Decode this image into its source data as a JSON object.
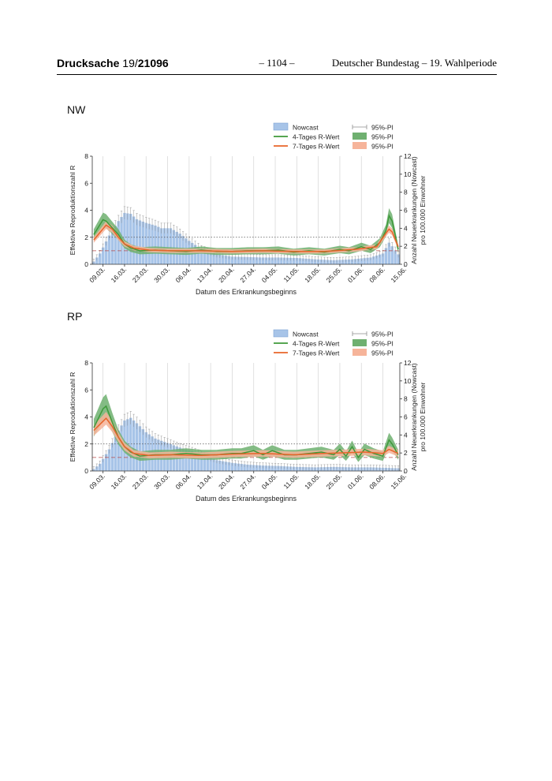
{
  "header": {
    "doc_label": "Drucksache",
    "doc_number_plain": "19/",
    "doc_number_bold": "21096",
    "page_number": "– 1104 –",
    "institution": "Deutscher Bundestag – 19. Wahlperiode"
  },
  "colors": {
    "bar": "#a7c4e8",
    "bar_edge": "#7fa4d2",
    "green": "#3e9a3a",
    "green_band": "#6fb070",
    "orange": "#e8642a",
    "orange_band": "#f6b49a",
    "pi": "#8e8e8e"
  },
  "chart_data": [
    {
      "type": "bar+line",
      "title": "NW",
      "xlabel": "Datum des Erkrankungsbeginns",
      "ylabel_left": "Effektive Reproduktionszahl R",
      "ylabel_right_1": "Anzahl Neuerkrankungen (Nowcast)",
      "ylabel_right_2": "pro 100.000 Einwohner",
      "ylim_left": [
        0,
        8
      ],
      "ylim_right": [
        0,
        12
      ],
      "yticks_left": [
        "0",
        "2",
        "4",
        "6",
        "8"
      ],
      "yticks_right": [
        "0",
        "2",
        "4",
        "6",
        "8",
        "10",
        "12"
      ],
      "x_ticks": [
        "09.03.",
        "16.03.",
        "23.03.",
        "30.03.",
        "06.04.",
        "13.04.",
        "20.04.",
        "27.04.",
        "04.05.",
        "11.05.",
        "18.05.",
        "25.05.",
        "01.06.",
        "08.06.",
        "15.06."
      ],
      "legend": [
        {
          "label": "Nowcast",
          "kind": "bar"
        },
        {
          "label": "4-Tages R-Wert",
          "kind": "green-line"
        },
        {
          "label": "7-Tages R-Wert",
          "kind": "orange-line"
        },
        {
          "label": "95%-PI",
          "kind": "errorbar"
        },
        {
          "label": "95%-PI",
          "kind": "green-band"
        },
        {
          "label": "95%-PI",
          "kind": "orange-band"
        }
      ],
      "reference_lines": {
        "r_equals_1": 1,
        "dotted_right_value": 3
      },
      "nowcast_keys": [
        [
          0,
          0.3
        ],
        [
          2,
          1.2
        ],
        [
          5,
          3.2
        ],
        [
          8,
          4.8
        ],
        [
          10,
          5.7
        ],
        [
          12,
          5.6
        ],
        [
          14,
          5.0
        ],
        [
          17,
          4.6
        ],
        [
          20,
          4.3
        ],
        [
          22,
          4.0
        ],
        [
          25,
          4.0
        ],
        [
          28,
          3.4
        ],
        [
          31,
          2.6
        ],
        [
          35,
          1.7
        ],
        [
          40,
          1.1
        ],
        [
          45,
          0.85
        ],
        [
          50,
          0.8
        ],
        [
          55,
          0.75
        ],
        [
          60,
          0.75
        ],
        [
          66,
          0.7
        ],
        [
          72,
          0.55
        ],
        [
          78,
          0.45
        ],
        [
          84,
          0.55
        ],
        [
          90,
          0.75
        ],
        [
          94,
          1.2
        ],
        [
          96,
          2.4
        ],
        [
          97,
          2.0
        ],
        [
          99,
          1.1
        ]
      ],
      "r4_keys": [
        [
          0,
          2.2
        ],
        [
          3,
          3.3
        ],
        [
          4,
          3.2
        ],
        [
          6,
          2.7
        ],
        [
          8,
          2.2
        ],
        [
          10,
          1.5
        ],
        [
          12,
          1.2
        ],
        [
          15,
          1.0
        ],
        [
          20,
          1.05
        ],
        [
          25,
          1.0
        ],
        [
          30,
          0.95
        ],
        [
          35,
          1.05
        ],
        [
          40,
          0.95
        ],
        [
          45,
          0.95
        ],
        [
          50,
          1.0
        ],
        [
          55,
          1.0
        ],
        [
          60,
          1.05
        ],
        [
          65,
          0.9
        ],
        [
          70,
          1.0
        ],
        [
          75,
          0.9
        ],
        [
          80,
          1.1
        ],
        [
          83,
          1.0
        ],
        [
          87,
          1.3
        ],
        [
          90,
          1.1
        ],
        [
          93,
          1.6
        ],
        [
          95,
          2.5
        ],
        [
          96,
          3.6
        ],
        [
          97,
          3.2
        ],
        [
          99,
          1.1
        ]
      ],
      "r7_keys": [
        [
          0,
          1.8
        ],
        [
          4,
          2.9
        ],
        [
          6,
          2.6
        ],
        [
          8,
          2.0
        ],
        [
          10,
          1.5
        ],
        [
          13,
          1.2
        ],
        [
          18,
          1.05
        ],
        [
          25,
          1.0
        ],
        [
          35,
          1.0
        ],
        [
          45,
          0.95
        ],
        [
          55,
          1.0
        ],
        [
          65,
          0.95
        ],
        [
          75,
          0.95
        ],
        [
          85,
          1.1
        ],
        [
          92,
          1.3
        ],
        [
          95,
          2.3
        ],
        [
          96,
          2.6
        ],
        [
          97,
          2.4
        ],
        [
          99,
          1.3
        ]
      ],
      "r4_band_halfwidth": 0.25,
      "r7_band_halfwidth": 0.15
    },
    {
      "type": "bar+line",
      "title": "RP",
      "xlabel": "Datum des Erkrankungsbeginns",
      "ylabel_left": "Effektive Reproduktionszahl R",
      "ylabel_right_1": "Anzahl Neuerkrankungen (Nowcast)",
      "ylabel_right_2": "pro 100.000 Einwohner",
      "ylim_left": [
        0,
        8
      ],
      "ylim_right": [
        0,
        12
      ],
      "yticks_left": [
        "0",
        "2",
        "4",
        "6",
        "8"
      ],
      "yticks_right": [
        "0",
        "2",
        "4",
        "6",
        "8",
        "10",
        "12"
      ],
      "x_ticks": [
        "09.03.",
        "16.03.",
        "23.03.",
        "30.03.",
        "06.04.",
        "13.04.",
        "20.04.",
        "27.04.",
        "04.05.",
        "11.05.",
        "18.05.",
        "25.05.",
        "01.06.",
        "08.06.",
        "15.06."
      ],
      "legend": [
        {
          "label": "Nowcast",
          "kind": "bar"
        },
        {
          "label": "4-Tages R-Wert",
          "kind": "green-line"
        },
        {
          "label": "7-Tages R-Wert",
          "kind": "orange-line"
        },
        {
          "label": "95%-PI",
          "kind": "errorbar"
        },
        {
          "label": "95%-PI",
          "kind": "green-band"
        },
        {
          "label": "95%-PI",
          "kind": "orange-band"
        }
      ],
      "reference_lines": {
        "r_equals_1": 1,
        "dotted_right_value": 3
      },
      "nowcast_keys": [
        [
          0,
          0.2
        ],
        [
          2,
          0.8
        ],
        [
          5,
          2.4
        ],
        [
          8,
          4.5
        ],
        [
          10,
          5.6
        ],
        [
          12,
          5.9
        ],
        [
          14,
          5.3
        ],
        [
          17,
          4.3
        ],
        [
          20,
          3.6
        ],
        [
          24,
          3.1
        ],
        [
          28,
          2.6
        ],
        [
          32,
          2.2
        ],
        [
          36,
          1.7
        ],
        [
          40,
          1.2
        ],
        [
          45,
          0.9
        ],
        [
          50,
          0.7
        ],
        [
          55,
          0.6
        ],
        [
          60,
          0.55
        ],
        [
          66,
          0.45
        ],
        [
          72,
          0.4
        ],
        [
          78,
          0.45
        ],
        [
          84,
          0.4
        ],
        [
          90,
          0.4
        ],
        [
          95,
          0.35
        ],
        [
          99,
          0.3
        ]
      ],
      "r4_keys": [
        [
          0,
          3.2
        ],
        [
          3,
          4.6
        ],
        [
          4,
          4.8
        ],
        [
          6,
          3.6
        ],
        [
          8,
          2.5
        ],
        [
          10,
          1.8
        ],
        [
          12,
          1.4
        ],
        [
          15,
          1.1
        ],
        [
          20,
          1.2
        ],
        [
          25,
          1.2
        ],
        [
          30,
          1.3
        ],
        [
          35,
          1.2
        ],
        [
          40,
          1.2
        ],
        [
          45,
          1.3
        ],
        [
          48,
          1.3
        ],
        [
          52,
          1.5
        ],
        [
          55,
          1.2
        ],
        [
          58,
          1.5
        ],
        [
          62,
          1.2
        ],
        [
          66,
          1.2
        ],
        [
          70,
          1.3
        ],
        [
          74,
          1.4
        ],
        [
          78,
          1.2
        ],
        [
          80,
          1.6
        ],
        [
          82,
          1.1
        ],
        [
          84,
          1.8
        ],
        [
          86,
          1.0
        ],
        [
          88,
          1.6
        ],
        [
          91,
          1.3
        ],
        [
          94,
          1.1
        ],
        [
          96,
          2.3
        ],
        [
          97,
          2.0
        ],
        [
          99,
          1.2
        ]
      ],
      "r7_keys": [
        [
          0,
          3.0
        ],
        [
          4,
          3.9
        ],
        [
          6,
          3.3
        ],
        [
          8,
          2.5
        ],
        [
          10,
          1.8
        ],
        [
          13,
          1.3
        ],
        [
          18,
          1.15
        ],
        [
          25,
          1.2
        ],
        [
          35,
          1.15
        ],
        [
          45,
          1.25
        ],
        [
          55,
          1.3
        ],
        [
          65,
          1.2
        ],
        [
          75,
          1.3
        ],
        [
          82,
          1.35
        ],
        [
          88,
          1.4
        ],
        [
          94,
          1.3
        ],
        [
          96,
          1.6
        ],
        [
          97,
          1.5
        ],
        [
          99,
          1.3
        ]
      ],
      "r4_band_halfwidth": 0.32,
      "r7_band_halfwidth": 0.2
    }
  ]
}
